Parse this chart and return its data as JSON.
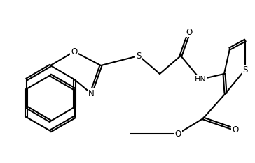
{
  "background_color": "#ffffff",
  "line_color": "#000000",
  "line_width": 1.5,
  "font_size": 8.5,
  "figsize": [
    3.64,
    2.34
  ],
  "dpi": 100,
  "xlim": [
    0,
    364
  ],
  "ylim": [
    0,
    234
  ]
}
